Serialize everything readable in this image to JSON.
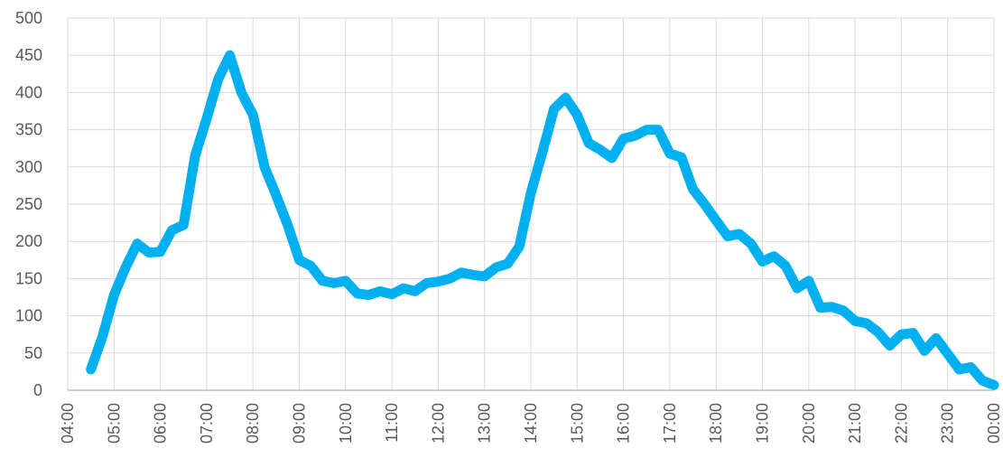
{
  "chart_data": {
    "type": "line",
    "title": "",
    "xlabel": "",
    "ylabel": "",
    "ylim": [
      0,
      500
    ],
    "y_ticks": [
      "0",
      "50",
      "100",
      "150",
      "200",
      "250",
      "300",
      "350",
      "400",
      "450",
      "500"
    ],
    "x_ticks": [
      "04:00",
      "05:00",
      "06:00",
      "07:00",
      "08:00",
      "09:00",
      "10:00",
      "11:00",
      "12:00",
      "13:00",
      "14:00",
      "15:00",
      "16:00",
      "17:00",
      "18:00",
      "19:00",
      "20:00",
      "21:00",
      "22:00",
      "23:00",
      "00:00"
    ],
    "grid": true,
    "legend": "none",
    "line_color": "#00b0f0",
    "series": [
      {
        "x": [
          "04:30",
          "04:45",
          "05:00",
          "05:15",
          "05:30",
          "05:45",
          "06:00",
          "06:15",
          "06:30",
          "06:45",
          "07:00",
          "07:15",
          "07:30",
          "07:45",
          "08:00",
          "08:15",
          "08:30",
          "08:45",
          "09:00",
          "09:15",
          "09:30",
          "09:45",
          "10:00",
          "10:15",
          "10:30",
          "10:45",
          "11:00",
          "11:15",
          "11:30",
          "11:45",
          "12:00",
          "12:15",
          "12:30",
          "12:45",
          "13:00",
          "13:15",
          "13:30",
          "13:45",
          "14:00",
          "14:15",
          "14:30",
          "14:45",
          "15:00",
          "15:15",
          "15:30",
          "15:45",
          "16:00",
          "16:15",
          "16:30",
          "16:45",
          "17:00",
          "17:15",
          "17:30",
          "17:45",
          "18:00",
          "18:15",
          "18:30",
          "18:45",
          "19:00",
          "19:15",
          "19:30",
          "19:45",
          "20:00",
          "20:15",
          "20:30",
          "20:45",
          "21:00",
          "21:15",
          "21:30",
          "21:45",
          "22:00",
          "22:15",
          "22:30",
          "22:45",
          "23:00",
          "23:15",
          "23:30",
          "23:45",
          "00:00"
        ],
        "values": [
          28,
          72,
          128,
          165,
          197,
          185,
          186,
          215,
          222,
          315,
          365,
          418,
          450,
          400,
          370,
          300,
          262,
          222,
          175,
          167,
          147,
          144,
          147,
          130,
          128,
          133,
          129,
          137,
          133,
          144,
          146,
          150,
          158,
          155,
          153,
          165,
          170,
          193,
          265,
          320,
          378,
          393,
          370,
          332,
          323,
          312,
          338,
          342,
          350,
          350,
          318,
          313,
          270,
          250,
          228,
          207,
          210,
          197,
          173,
          180,
          167,
          137,
          147,
          111,
          112,
          107,
          93,
          90,
          78,
          60,
          75,
          77,
          53,
          70,
          49,
          28,
          31,
          13,
          7
        ]
      }
    ]
  }
}
